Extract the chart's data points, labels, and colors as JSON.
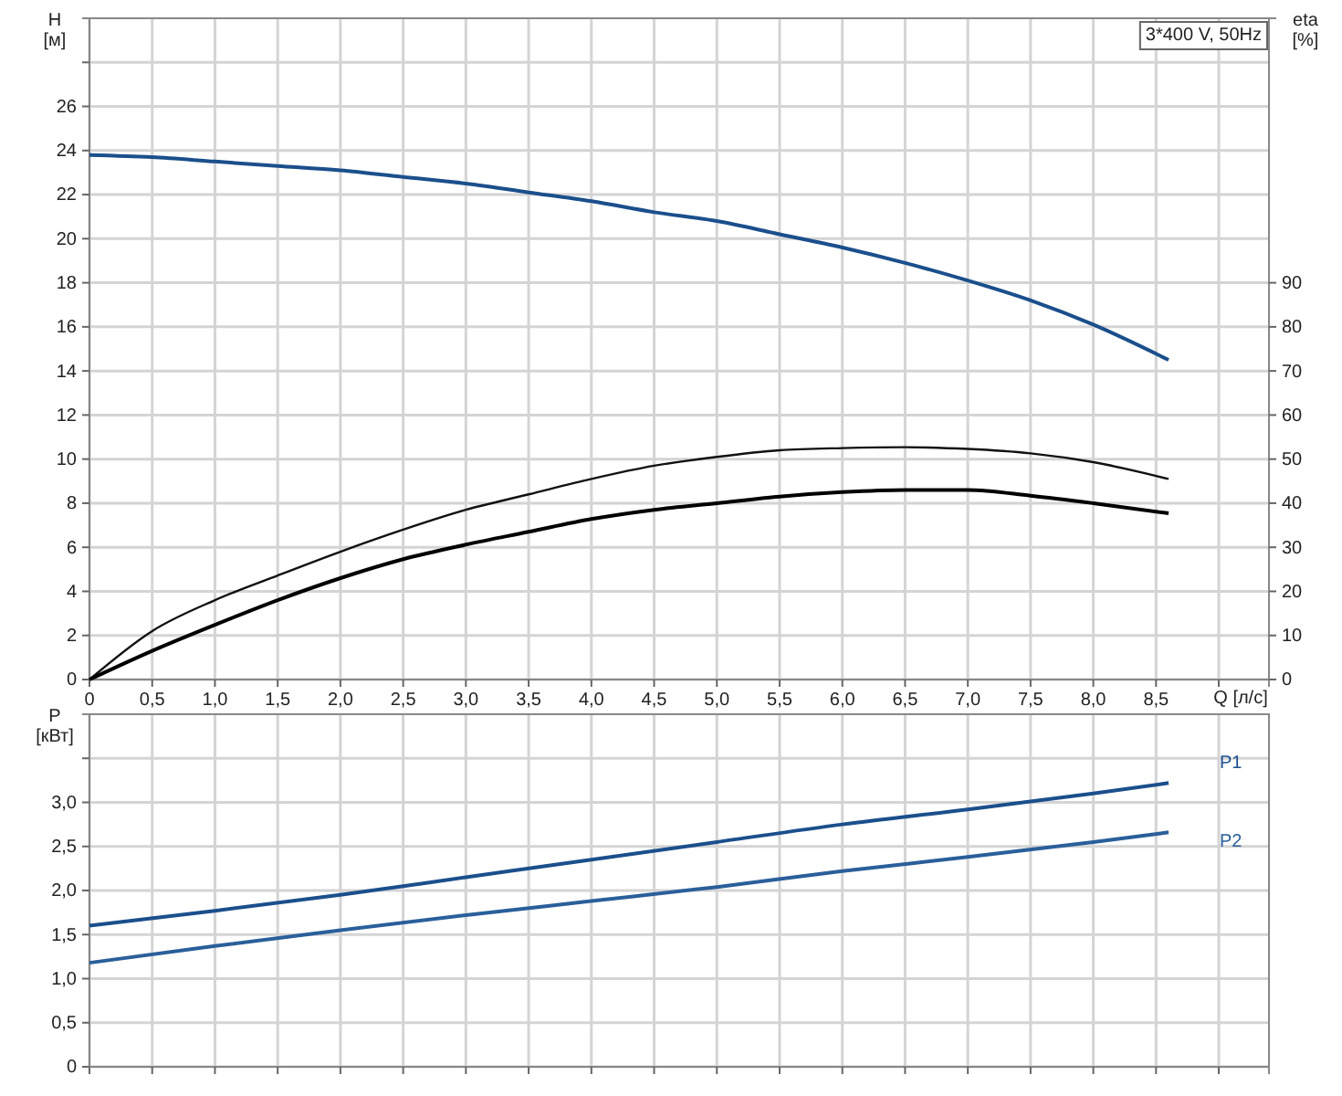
{
  "chart_data": [
    {
      "type": "line",
      "title": "3*400 V, 50Hz",
      "ylabel": "H [м]",
      "y2label": "eta [%]",
      "xlabel": "Q [л/с]",
      "xlim": [
        0,
        9.4
      ],
      "ylim": [
        0,
        30
      ],
      "y2lim": [
        0,
        150
      ],
      "xticks": [
        0,
        {
          "value": 0.5,
          "label": "0,5"
        },
        {
          "value": 1,
          "label": "1,0"
        },
        {
          "value": 1.5,
          "label": "1,5"
        },
        {
          "value": 2,
          "label": "2,0"
        },
        {
          "value": 2.5,
          "label": "2,5"
        },
        {
          "value": 3,
          "label": "3,0"
        },
        {
          "value": 3.5,
          "label": "3,5"
        },
        {
          "value": 4,
          "label": "4,0"
        },
        {
          "value": 4.5,
          "label": "4,5"
        },
        {
          "value": 5,
          "label": "5,0"
        },
        {
          "value": 5.5,
          "label": "5,5"
        },
        {
          "value": 6,
          "label": "6,0"
        },
        {
          "value": 6.5,
          "label": "6,5"
        },
        {
          "value": 7,
          "label": "7,0"
        },
        {
          "value": 7.5,
          "label": "7,5"
        },
        {
          "value": 8,
          "label": "8,0"
        },
        {
          "value": 8.5,
          "label": "8,5"
        },
        {
          "value": 9,
          "label": null
        }
      ],
      "yticks": [
        0,
        2,
        4,
        6,
        8,
        10,
        12,
        14,
        16,
        18,
        20,
        22,
        24,
        26,
        {
          "value": 28,
          "label": null
        }
      ],
      "y2ticks": [
        0,
        10,
        20,
        30,
        40,
        50,
        60,
        70,
        80,
        90
      ],
      "grid": true,
      "marker": "none",
      "line_style": "solid",
      "x": [
        0,
        0.5,
        1,
        1.5,
        2,
        2.5,
        3,
        3.5,
        4,
        4.5,
        5,
        5.5,
        6,
        6.5,
        7,
        7.5,
        8,
        8.6
      ],
      "series": [
        {
          "color": "#1b4f8c",
          "values": [
            23.8,
            23.7,
            23.5,
            23.3,
            23.1,
            22.8,
            22.5,
            22.1,
            21.7,
            21.2,
            20.8,
            20.2,
            19.6,
            18.9,
            18.1,
            17.2,
            16.1,
            14.5
          ]
        },
        {
          "color": "#111111",
          "axis": "y2",
          "values": [
            0,
            11,
            18,
            23.6,
            29,
            34,
            38.5,
            42,
            45.5,
            48.5,
            50.5,
            52,
            52.5,
            52.7,
            52.3,
            51.3,
            49.3,
            45.5
          ]
        },
        {
          "color": "#000000",
          "axis": "y2",
          "values": [
            0,
            6.5,
            12.4,
            18,
            23,
            27.3,
            30.6,
            33.5,
            36.4,
            38.5,
            40,
            41.5,
            42.5,
            43,
            43,
            41.7,
            40,
            37.7
          ]
        }
      ]
    },
    {
      "type": "line",
      "ylabel": "P [кВт]",
      "xlim": [
        0,
        9.4
      ],
      "ylim": [
        0,
        4
      ],
      "xticks": [
        0,
        0.5,
        1,
        1.5,
        2,
        2.5,
        3,
        3.5,
        4,
        4.5,
        5,
        5.5,
        6,
        6.5,
        7,
        7.5,
        8,
        8.5,
        9
      ],
      "yticks": [
        0,
        {
          "value": 0.5,
          "label": "0,5"
        },
        {
          "value": 1,
          "label": "1,0"
        },
        {
          "value": 1.5,
          "label": "1,5"
        },
        {
          "value": 2,
          "label": "2,0"
        },
        {
          "value": 2.5,
          "label": "2,5"
        },
        {
          "value": 3,
          "label": "3,0"
        },
        {
          "value": 3.5,
          "label": null
        }
      ],
      "tick_labels": "y",
      "grid": true,
      "marker": "none",
      "line_style": "solid",
      "x": [
        0,
        1,
        2,
        3,
        4,
        5,
        6,
        7,
        8,
        8.6
      ],
      "series": [
        {
          "name": "P1",
          "color": "#1b4f8c",
          "values": [
            1.6,
            1.77,
            1.95,
            2.15,
            2.35,
            2.55,
            2.75,
            2.92,
            3.1,
            3.22
          ]
        },
        {
          "name": "P2",
          "color": "#2a5f9a",
          "values": [
            1.18,
            1.37,
            1.55,
            1.72,
            1.88,
            2.04,
            2.22,
            2.38,
            2.55,
            2.66
          ]
        }
      ]
    }
  ]
}
